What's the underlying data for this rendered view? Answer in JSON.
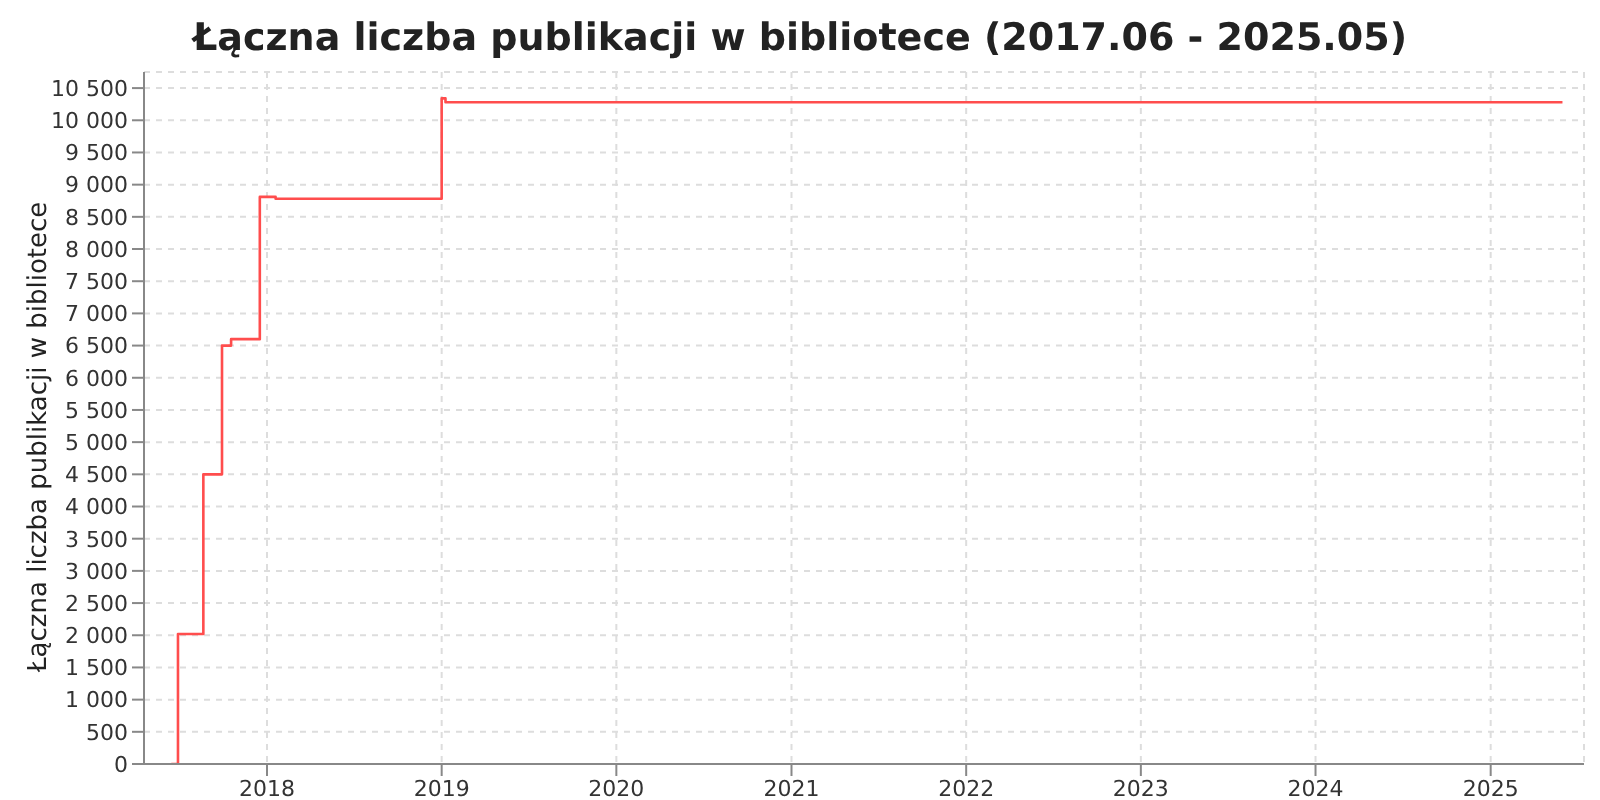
{
  "chart_data": {
    "type": "step",
    "title": "Łączna liczba publikacji w bibliotece (2017.06 - 2025.05)",
    "ylabel": "Łączna liczba publikacji w bibliotece",
    "x": [
      "2017-06-15",
      "2017-06-29",
      "2017-08-21",
      "2017-09-29",
      "2017-10-18",
      "2017-12-17",
      "2018-01-19",
      "2019-01-01",
      "2019-01-09",
      "2025-05-31"
    ],
    "series": [
      {
        "color": "#ff4d4d",
        "values": [
          0,
          2020,
          4500,
          6500,
          6600,
          8810,
          8780,
          10340,
          10280,
          10280
        ]
      }
    ],
    "xlim": [
      "2017-04-19",
      "2025-07-15"
    ],
    "xticks": [
      {
        "value": "2018-01-01",
        "label": "2018"
      },
      {
        "value": "2019-01-01",
        "label": "2019"
      },
      {
        "value": "2020-01-01",
        "label": "2020"
      },
      {
        "value": "2021-01-01",
        "label": "2021"
      },
      {
        "value": "2022-01-01",
        "label": "2022"
      },
      {
        "value": "2023-01-01",
        "label": "2023"
      },
      {
        "value": "2024-01-01",
        "label": "2024"
      },
      {
        "value": "2025-01-01",
        "label": "2025"
      }
    ],
    "ylim": [
      0,
      10750
    ],
    "yticks": [
      0,
      500,
      {
        "value": 1000,
        "label": "1 000"
      },
      {
        "value": 1500,
        "label": "1 500"
      },
      {
        "value": 2000,
        "label": "2 000"
      },
      {
        "value": 2500,
        "label": "2 500"
      },
      {
        "value": 3000,
        "label": "3 000"
      },
      {
        "value": 3500,
        "label": "3 500"
      },
      {
        "value": 4000,
        "label": "4 000"
      },
      {
        "value": 4500,
        "label": "4 500"
      },
      {
        "value": 5000,
        "label": "5 000"
      },
      {
        "value": 5500,
        "label": "5 500"
      },
      {
        "value": 6000,
        "label": "6 000"
      },
      {
        "value": 6500,
        "label": "6 500"
      },
      {
        "value": 7000,
        "label": "7 000"
      },
      {
        "value": 7500,
        "label": "7 500"
      },
      {
        "value": 8000,
        "label": "8 000"
      },
      {
        "value": 8500,
        "label": "8 500"
      },
      {
        "value": 9000,
        "label": "9 000"
      },
      {
        "value": 9500,
        "label": "9 500"
      },
      {
        "value": 10000,
        "label": "10 000"
      },
      {
        "value": 10500,
        "label": "10 500"
      }
    ],
    "grid": true,
    "line_style": "solid"
  }
}
